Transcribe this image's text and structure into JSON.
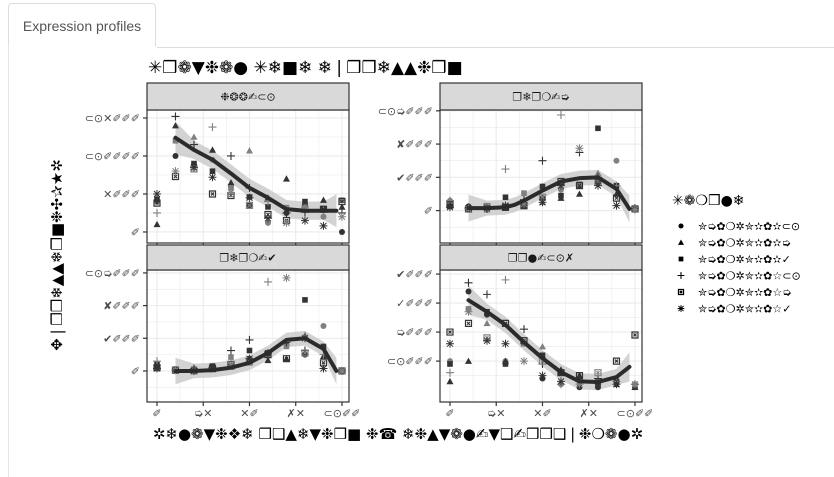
{
  "tabs": [
    {
      "label": "Expression profiles",
      "active": true
    }
  ],
  "chart_data": {
    "type": "scatter",
    "title": "✳❒❁▼❉❁● ✳❄■❄ ❄❘❒❒❄▲▲❉❒■",
    "xlabel": "✲❄●❁▼❉❖❄ ❒❑▲❄▼❉❒■ ❉☎ ❄❉▲▼❁●✍▼❑✍❒❒❑❘❉❍❁●✲",
    "ylabel": "✥❘❒❒❄▲▲❄❒■❉✣✰★✲",
    "grid": true,
    "smooth": true,
    "legend": {
      "title": "✳❁❍❒●❄",
      "placement": "right",
      "entries": [
        {
          "shape": "circle",
          "label": "✮➭✿❍✲✮✫✿✫⊂⊙"
        },
        {
          "shape": "triangle",
          "label": "✮➭✿❍✲✮✫✿✫➭"
        },
        {
          "shape": "square",
          "label": "✮➭✿❍✲✮✫✿✫✓"
        },
        {
          "shape": "plus",
          "label": "✮➭✿❍✲✮✫✿☆⊂⊙"
        },
        {
          "shape": "boxed-x",
          "label": "✮➭✿❍✲✮✫✿☆➭"
        },
        {
          "shape": "asterisk",
          "label": "✮➭✿❍✲✮✫✿☆✓"
        }
      ]
    },
    "x": [
      0,
      10,
      20,
      30,
      40,
      50,
      60,
      70,
      80,
      90,
      100
    ],
    "xlim": [
      -5.4,
      103.8
    ],
    "xticks": [
      0,
      25,
      50,
      75,
      100
    ],
    "xtick_labels": [
      "✐",
      "➭✕",
      "✕✐",
      "✗✕",
      "⊂⊙✐✐"
    ],
    "panels": [
      {
        "strip": "❉❂❂✍⊂⊙",
        "ylim": [
          -1450,
          16050
        ],
        "yticks": [
          0,
          5000,
          10000,
          15000
        ],
        "ytick_labels": [
          "✐",
          "✕✐✐✐",
          "⊂⊙✐✐✐✐",
          "⊂⊙✕✐✐✐"
        ],
        "series": [
          [
            4000,
            10000,
            8800,
            9500,
            6000,
            3500,
            1200,
            2500,
            3500,
            2000,
            0
          ],
          [
            1000,
            14000,
            12500,
            10800,
            6500,
            10700,
            4500,
            7000,
            3500,
            4200,
            3300
          ],
          [
            4300,
            12000,
            9000,
            8000,
            5800,
            4600,
            3300,
            3200,
            4000,
            3000,
            4200
          ],
          [
            2500,
            15200,
            11500,
            13800,
            10000,
            5800,
            4000,
            2500,
            2600,
            2800,
            2500
          ],
          [
            3800,
            7300,
            8300,
            5000,
            4800,
            3500,
            2300,
            1500,
            3000,
            3000,
            4000
          ],
          [
            5000,
            8000,
            8500,
            7200,
            5200,
            4500,
            1800,
            1200,
            1500,
            800,
            2000
          ]
        ],
        "smooth_x": [
          10,
          20,
          30,
          40,
          50,
          60,
          70,
          80,
          90,
          97
        ],
        "smooth_y": [
          12400,
          10800,
          9500,
          7700,
          5800,
          4500,
          3000,
          2800,
          2800,
          2800
        ],
        "ribbon_halfwidth": 1200
      },
      {
        "strip": "❒❄❒❍✍➭",
        "ylim": [
          -3900,
          12100
        ],
        "yticks": [
          0,
          4000,
          8000,
          12000
        ],
        "ytick_labels": [
          "✐",
          "✔✐✐✐",
          "✘✐✐✐",
          "⊂⊙➭✐✐✐"
        ],
        "series": [
          [
            1200,
            500,
            300,
            400,
            800,
            1500,
            2500,
            3000,
            3500,
            6000,
            200
          ],
          [
            700,
            200,
            100,
            300,
            500,
            1000,
            1500,
            2000,
            4500,
            2000,
            100
          ],
          [
            500,
            300,
            400,
            1600,
            2100,
            2900,
            1800,
            3200,
            9900,
            3000,
            200
          ],
          [
            1200,
            300,
            200,
            5000,
            1300,
            6000,
            11500,
            7000,
            4000,
            3000,
            300
          ],
          [
            700,
            200,
            500,
            400,
            600,
            1600,
            3500,
            3000,
            3500,
            1500,
            200
          ],
          [
            400,
            200,
            300,
            600,
            800,
            1000,
            3000,
            7500,
            3000,
            600,
            100
          ]
        ],
        "smooth_x": [
          10,
          20,
          30,
          35,
          40,
          50,
          60,
          70,
          80,
          90,
          97
        ],
        "smooth_y": [
          300,
          300,
          400,
          700,
          1200,
          2400,
          3500,
          3900,
          4000,
          2600,
          200
        ],
        "ribbon_halfwidth": 900
      },
      {
        "strip": "❒❄❒❍✍✔",
        "ylim": [
          -3800,
          12360
        ],
        "yticks": [
          0,
          4000,
          8000,
          12000
        ],
        "ytick_labels": [
          "✐",
          "✔✐✐✐",
          "✘✐✐✐",
          "⊂⊙➭✐✐✐"
        ],
        "series": [
          [
            600,
            100,
            0,
            300,
            700,
            1500,
            2000,
            3200,
            2000,
            5500,
            0
          ],
          [
            500,
            100,
            0,
            200,
            500,
            1000,
            1300,
            1500,
            4400,
            1800,
            0
          ],
          [
            800,
            100,
            200,
            600,
            1700,
            2500,
            2200,
            3000,
            8700,
            3000,
            0
          ],
          [
            1200,
            100,
            300,
            400,
            2500,
            3800,
            10900,
            3500,
            2500,
            2000,
            0
          ],
          [
            400,
            100,
            0,
            300,
            800,
            1200,
            2000,
            1500,
            2200,
            1000,
            0
          ],
          [
            300,
            100,
            0,
            400,
            900,
            1500,
            2200,
            11400,
            4000,
            300,
            0
          ]
        ],
        "smooth_x": [
          10,
          20,
          30,
          40,
          50,
          60,
          70,
          80,
          90,
          97
        ],
        "smooth_y": [
          0,
          0,
          100,
          400,
          1000,
          2200,
          3800,
          4000,
          2700,
          0
        ],
        "ribbon_halfwidth": 900
      },
      {
        "strip": "❒❒●✍⊂⊙✗",
        "ylim": [
          -410,
          4140
        ],
        "yticks": [
          1000,
          2000,
          3000,
          4000
        ],
        "ytick_labels": [
          "⊂⊙✐✐✐",
          "➭✐✐✐",
          "✓✐✐✐",
          "✔✐✐✐"
        ],
        "series": [
          [
            1000,
            3400,
            2600,
            1000,
            1600,
            400,
            200,
            100,
            100,
            300,
            100
          ],
          [
            300,
            1000,
            2300,
            1000,
            1600,
            1500,
            700,
            500,
            300,
            200,
            100
          ],
          [
            900,
            2800,
            2700,
            900,
            1600,
            1200,
            600,
            300,
            200,
            300,
            200
          ],
          [
            600,
            3700,
            3300,
            3800,
            2100,
            900,
            200,
            300,
            400,
            300,
            200
          ],
          [
            2000,
            2300,
            1800,
            2300,
            1700,
            1000,
            600,
            500,
            600,
            1000,
            1900
          ],
          [
            1600,
            2700,
            1700,
            1600,
            1000,
            500,
            300,
            200,
            300,
            200,
            200
          ]
        ],
        "smooth_x": [
          10,
          20,
          30,
          40,
          50,
          60,
          70,
          80,
          90,
          97
        ],
        "smooth_y": [
          3100,
          2700,
          2250,
          1650,
          1100,
          620,
          300,
          280,
          450,
          800
        ],
        "ribbon_halfwidth": 280
      }
    ],
    "colors": {
      "points": "#333333",
      "points_alt": "#808080",
      "smooth": "#2b2b2b",
      "ribbon": "#c8c8c8",
      "strip_bg": "#d9d9d9",
      "grid": "#ebebeb"
    }
  }
}
